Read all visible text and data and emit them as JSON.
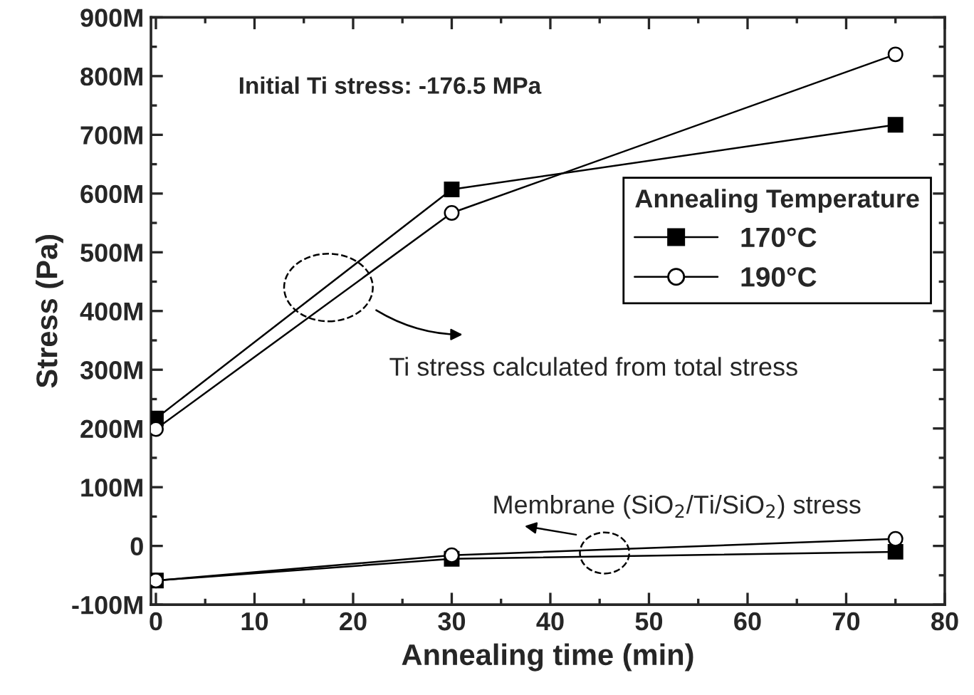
{
  "chart_data": {
    "type": "line",
    "xlabel": "Annealing time (min)",
    "ylabel": "Stress (Pa)",
    "legend_title": "Annealing Temperature",
    "legend": "right",
    "line_style": "solid",
    "grid": false,
    "xlim": [
      -0.5,
      80
    ],
    "xticks": [
      0,
      10,
      20,
      30,
      40,
      50,
      60,
      70,
      80
    ],
    "ylim": [
      -100000000,
      900000000
    ],
    "yticks": [
      {
        "value": -100000000,
        "label": "-100M"
      },
      {
        "value": 0,
        "label": "0"
      },
      {
        "value": 100000000,
        "label": "100M"
      },
      {
        "value": 200000000,
        "label": "200M"
      },
      {
        "value": 300000000,
        "label": "300M"
      },
      {
        "value": 400000000,
        "label": "400M"
      },
      {
        "value": 500000000,
        "label": "500M"
      },
      {
        "value": 600000000,
        "label": "600M"
      },
      {
        "value": 700000000,
        "label": "700M"
      },
      {
        "value": 800000000,
        "label": "800M"
      },
      {
        "value": 900000000,
        "label": "900M"
      }
    ],
    "x": [
      0,
      30,
      75
    ],
    "series": [
      {
        "name": "170°C",
        "color": "#000000",
        "marker": "square",
        "values": [
          217000000,
          607000000,
          717000000
        ]
      },
      {
        "name": "190°C",
        "color": "#000000",
        "marker": "circle",
        "values": [
          199000000,
          567000000,
          837000000
        ]
      },
      {
        "color": "#000000",
        "marker": "square",
        "values": [
          -59000000,
          -22000000,
          -10000000
        ]
      },
      {
        "color": "#000000",
        "marker": "circle",
        "values": [
          -59000000,
          -16000000,
          12000000
        ]
      }
    ],
    "annotations": [
      "Initial Ti stress: -176.5 MPa",
      "Ti stress calculated from total stress",
      "Membrane (SiO$_{2}$/Ti/SiO$_{2}$) stress"
    ]
  }
}
